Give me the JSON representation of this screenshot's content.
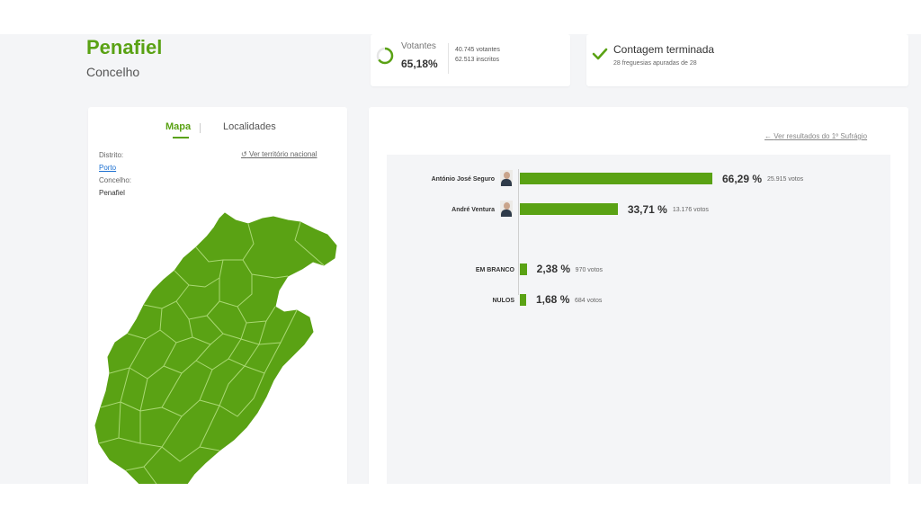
{
  "header": {
    "title": "Penafiel",
    "subtitle": "Concelho"
  },
  "voters": {
    "label": "Votantes",
    "percent": "65,18%",
    "percent_value": 65.18,
    "voters_count": "40.745 votantes",
    "registered_count": "62.513 inscritos"
  },
  "count": {
    "title": "Contagem terminada",
    "subtitle": "28 freguesias apuradas de 28"
  },
  "map_panel": {
    "tabs": [
      {
        "label": "Mapa",
        "active": true
      },
      {
        "label": "Localidades",
        "active": false
      }
    ],
    "district_label": "Distrito:",
    "district_value": "Porto",
    "municipality_label": "Concelho:",
    "municipality_value": "Penafiel",
    "national_link": "Ver território nacional",
    "map_color": "#5aa214"
  },
  "results": {
    "first_round_link": "Ver resultados do 1º Sufrágio",
    "candidates": [
      {
        "name": "António José Seguro",
        "percent_label": "66,29 %",
        "percent": 66.29,
        "votes": "25.915 votos"
      },
      {
        "name": "André Ventura",
        "percent_label": "33,71 %",
        "percent": 33.71,
        "votes": "13.176 votos"
      }
    ],
    "others": [
      {
        "name": "EM BRANCO",
        "percent_label": "2,38 %",
        "percent": 2.38,
        "votes": "970 votos"
      },
      {
        "name": "NULOS",
        "percent_label": "1,68 %",
        "percent": 1.68,
        "votes": "684 votos"
      }
    ]
  },
  "colors": {
    "accent": "#5aa214",
    "link": "#1a6fd1",
    "background": "#f4f5f7"
  }
}
